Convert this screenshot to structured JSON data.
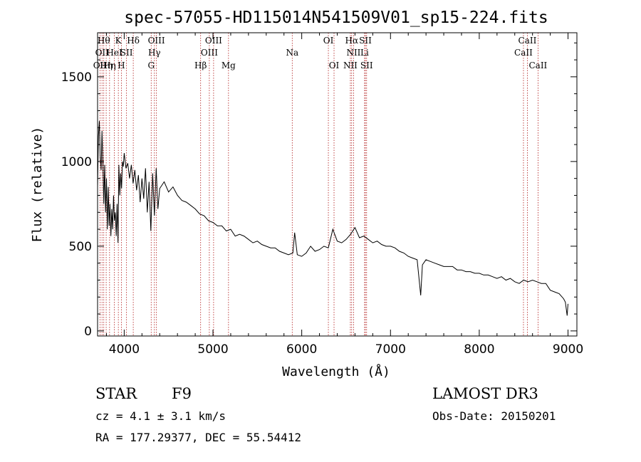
{
  "chart_data": {
    "type": "line",
    "title": "spec-57055-HD115014N541509V01_sp15-224.fits",
    "xlabel": "Wavelength (Å)",
    "ylabel": "Flux (relative)",
    "xlim": [
      3700,
      9100
    ],
    "ylim": [
      -30,
      1760
    ],
    "xticks": [
      4000,
      5000,
      6000,
      7000,
      8000,
      9000
    ],
    "yticks": [
      0,
      500,
      1000,
      1500
    ],
    "series": [
      {
        "x": [
          3700,
          3710,
          3720,
          3730,
          3740,
          3750,
          3760,
          3770,
          3780,
          3790,
          3800,
          3810,
          3820,
          3830,
          3840,
          3850,
          3860,
          3870,
          3880,
          3890,
          3900,
          3910,
          3920,
          3930,
          3940,
          3950,
          3960,
          3970,
          3980,
          3990,
          4000,
          4020,
          4040,
          4060,
          4080,
          4100,
          4120,
          4140,
          4160,
          4180,
          4200,
          4220,
          4240,
          4260,
          4280,
          4300,
          4320,
          4340,
          4360,
          4380,
          4400,
          4450,
          4500,
          4550,
          4600,
          4650,
          4700,
          4750,
          4800,
          4850,
          4900,
          4950,
          5000,
          5050,
          5100,
          5150,
          5200,
          5250,
          5300,
          5350,
          5400,
          5450,
          5500,
          5550,
          5600,
          5650,
          5700,
          5750,
          5800,
          5850,
          5900,
          5920,
          5950,
          6000,
          6050,
          6100,
          6150,
          6200,
          6250,
          6300,
          6350,
          6400,
          6450,
          6500,
          6550,
          6600,
          6650,
          6700,
          6750,
          6800,
          6850,
          6900,
          6950,
          7000,
          7050,
          7100,
          7150,
          7200,
          7250,
          7300,
          7340,
          7360,
          7400,
          7450,
          7500,
          7550,
          7600,
          7650,
          7700,
          7750,
          7800,
          7850,
          7900,
          7950,
          8000,
          8050,
          8100,
          8150,
          8200,
          8250,
          8300,
          8350,
          8400,
          8450,
          8500,
          8550,
          8600,
          8650,
          8700,
          8750,
          8800,
          8850,
          8900,
          8950,
          8970,
          8990,
          9000
        ],
        "values": [
          850,
          1150,
          1240,
          1030,
          950,
          1180,
          1000,
          750,
          980,
          700,
          900,
          600,
          850,
          620,
          750,
          560,
          720,
          600,
          800,
          650,
          700,
          560,
          750,
          520,
          980,
          800,
          930,
          840,
          1000,
          970,
          1050,
          960,
          990,
          900,
          980,
          870,
          950,
          830,
          920,
          760,
          900,
          780,
          960,
          700,
          880,
          590,
          930,
          680,
          960,
          720,
          840,
          880,
          820,
          850,
          800,
          770,
          760,
          740,
          720,
          690,
          680,
          650,
          640,
          620,
          620,
          590,
          600,
          560,
          570,
          560,
          540,
          520,
          530,
          510,
          500,
          490,
          490,
          470,
          460,
          450,
          460,
          580,
          450,
          440,
          460,
          500,
          470,
          480,
          500,
          490,
          600,
          530,
          520,
          540,
          570,
          610,
          550,
          560,
          540,
          520,
          530,
          510,
          500,
          500,
          490,
          470,
          460,
          440,
          430,
          420,
          210,
          390,
          420,
          410,
          400,
          390,
          380,
          380,
          380,
          360,
          360,
          350,
          350,
          340,
          340,
          330,
          330,
          320,
          310,
          320,
          300,
          310,
          290,
          280,
          300,
          290,
          300,
          290,
          280,
          280,
          240,
          230,
          220,
          190,
          170,
          90,
          160
        ]
      }
    ],
    "spectral_lines": [
      {
        "wl": 3727,
        "label": "OII",
        "row": 2
      },
      {
        "wl": 3750,
        "label": "OII",
        "row": 1
      },
      {
        "wl": 3770,
        "label": "Hθ",
        "row": 0
      },
      {
        "wl": 3797,
        "label": "Hη",
        "row": 2
      },
      {
        "wl": 3835,
        "label": "Hη",
        "row": 2
      },
      {
        "wl": 3889,
        "label": "HeI",
        "row": 1
      },
      {
        "wl": 3934,
        "label": "K",
        "row": 0
      },
      {
        "wl": 3968,
        "label": "H",
        "row": 2
      },
      {
        "wl": 4026,
        "label": "SII",
        "row": 1
      },
      {
        "wl": 4102,
        "label": "Hδ",
        "row": 0
      },
      {
        "wl": 4304,
        "label": "G",
        "row": 2
      },
      {
        "wl": 4340,
        "label": "Hγ",
        "row": 1
      },
      {
        "wl": 4363,
        "label": "OIII",
        "row": 0
      },
      {
        "wl": 4861,
        "label": "Hβ",
        "row": 2
      },
      {
        "wl": 4959,
        "label": "OIII",
        "row": 1
      },
      {
        "wl": 5007,
        "label": "OIII",
        "row": 0
      },
      {
        "wl": 5175,
        "label": "Mg",
        "row": 2
      },
      {
        "wl": 5893,
        "label": "Na",
        "row": 1
      },
      {
        "wl": 6300,
        "label": "OI",
        "row": 0
      },
      {
        "wl": 6364,
        "label": "OI",
        "row": 2
      },
      {
        "wl": 6548,
        "label": "NII",
        "row": 2
      },
      {
        "wl": 6563,
        "label": "Hα",
        "row": 0
      },
      {
        "wl": 6584,
        "label": "NII",
        "row": 1
      },
      {
        "wl": 6708,
        "label": "Li",
        "row": 1
      },
      {
        "wl": 6717,
        "label": "SII",
        "row": 0
      },
      {
        "wl": 6731,
        "label": "SII",
        "row": 2
      },
      {
        "wl": 8498,
        "label": "CaII",
        "row": 1
      },
      {
        "wl": 8542,
        "label": "CaII",
        "row": 0
      },
      {
        "wl": 8662,
        "label": "CaII",
        "row": 2
      }
    ]
  },
  "info": {
    "object_class": "STAR",
    "subclass": "F9",
    "survey": "LAMOST DR3",
    "cz": "cz = 4.1 ± 3.1 km/s",
    "obs_date": "Obs-Date: 20150201",
    "coords": "RA = 177.29377, DEC =  55.54412"
  },
  "colors": {
    "line_marker": "#b01818",
    "spectrum": "#000000"
  }
}
